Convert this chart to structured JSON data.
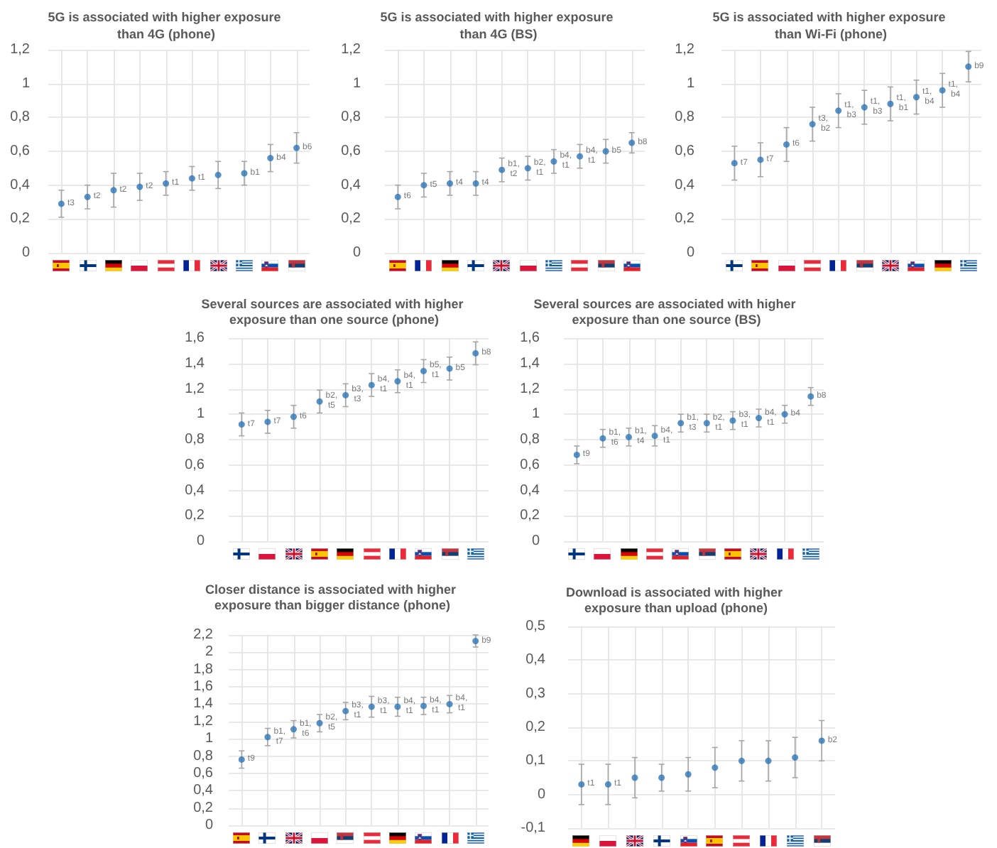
{
  "chart_data": [
    {
      "type": "scatter",
      "title": "5G is associated with higher exposure than 4G (phone)",
      "categories": [
        null,
        null,
        null,
        null,
        null,
        null,
        null,
        null,
        null,
        null
      ],
      "values": [
        0.29,
        0.33,
        0.37,
        0.39,
        0.41,
        0.44,
        0.46,
        0.47,
        0.56,
        0.62
      ],
      "errors": [
        0.08,
        0.07,
        0.1,
        0.08,
        0.07,
        0.07,
        0.08,
        0.07,
        0.08,
        0.09
      ],
      "value_labels": [
        "t3",
        "t2",
        "t2",
        "t2",
        "t1",
        "t1",
        null,
        "b1",
        "b4",
        "b6"
      ],
      "color": "#2e75b6",
      "marker": "circle",
      "grid": true,
      "ylim": [
        0,
        1.2
      ],
      "yticks": [
        0,
        {
          "value": 0.2,
          "label": "0,2"
        },
        {
          "value": 0.4,
          "label": "0,4"
        },
        {
          "value": 0.6,
          "label": "0,6"
        },
        {
          "value": 0.8,
          "label": "0,8"
        },
        1,
        {
          "value": 1.2,
          "label": "1,2"
        }
      ]
    },
    {
      "type": "scatter",
      "title": "5G is associated with higher exposure than 4G (BS)",
      "categories": [
        null,
        null,
        null,
        null,
        null,
        null,
        null,
        null,
        null,
        null
      ],
      "values": [
        0.33,
        0.4,
        0.41,
        0.41,
        0.49,
        0.5,
        0.54,
        0.57,
        0.6,
        0.65
      ],
      "errors": [
        0.07,
        0.07,
        0.07,
        0.07,
        0.07,
        0.07,
        0.07,
        0.07,
        0.07,
        0.06
      ],
      "value_labels": [
        "t6",
        "t5",
        "t4",
        "t4",
        "b1, t2",
        "b2, t1",
        "b4, t1",
        "b4, t1",
        "b5",
        "b8"
      ],
      "color": "#2e75b6",
      "marker": "circle",
      "grid": true,
      "ylim": [
        0,
        1.2
      ],
      "yticks": [
        0,
        {
          "value": 0.2,
          "label": "0,2"
        },
        {
          "value": 0.4,
          "label": "0,4"
        },
        {
          "value": 0.6,
          "label": "0,6"
        },
        {
          "value": 0.8,
          "label": "0,8"
        },
        1,
        {
          "value": 1.2,
          "label": "1,2"
        }
      ]
    },
    {
      "type": "scatter",
      "title": "5G is associated with higher exposure than Wi-Fi (phone)",
      "categories": [
        null,
        null,
        null,
        null,
        null,
        null,
        null,
        null,
        null,
        null
      ],
      "values": [
        0.53,
        0.55,
        0.64,
        0.76,
        0.84,
        0.86,
        0.88,
        0.92,
        0.96,
        1.1
      ],
      "errors": [
        0.1,
        0.1,
        0.1,
        0.1,
        0.1,
        0.1,
        0.1,
        0.1,
        0.1,
        0.09
      ],
      "value_labels": [
        "t7",
        "t7",
        "t6",
        "t3, b2",
        "t1, b3",
        "t1, b3",
        "t1, b1",
        "t1, b4",
        "t1, b4",
        "b9"
      ],
      "color": "#2e75b6",
      "marker": "circle",
      "grid": true,
      "ylim": [
        0,
        1.2
      ],
      "yticks": [
        0,
        {
          "value": 0.2,
          "label": "0,2"
        },
        {
          "value": 0.4,
          "label": "0,4"
        },
        {
          "value": 0.6,
          "label": "0,6"
        },
        {
          "value": 0.8,
          "label": "0,8"
        },
        1,
        {
          "value": 1.2,
          "label": "1,2"
        }
      ]
    },
    {
      "type": "scatter",
      "title": "Several sources are associated with higher exposure than one source (phone)",
      "categories": [
        null,
        null,
        null,
        null,
        null,
        null,
        null,
        null,
        null,
        null
      ],
      "values": [
        0.92,
        0.94,
        0.98,
        1.1,
        1.15,
        1.23,
        1.26,
        1.34,
        1.36,
        1.48
      ],
      "errors": [
        0.09,
        0.09,
        0.09,
        0.09,
        0.09,
        0.09,
        0.09,
        0.09,
        0.09,
        0.09
      ],
      "value_labels": [
        "t7",
        "t7",
        "t6",
        "b2, t5",
        "b3, t3",
        "b4, t1",
        "b4, t1",
        "b5, t1",
        "b5",
        "b8"
      ],
      "color": "#2e75b6",
      "marker": "circle",
      "grid": true,
      "ylim": [
        0,
        1.6
      ],
      "yticks": [
        0,
        {
          "value": 0.2,
          "label": "0,2"
        },
        {
          "value": 0.4,
          "label": "0,4"
        },
        {
          "value": 0.6,
          "label": "0,6"
        },
        {
          "value": 0.8,
          "label": "0,8"
        },
        1,
        {
          "value": 1.2,
          "label": "1,2"
        },
        {
          "value": 1.4,
          "label": "1,4"
        },
        {
          "value": 1.6,
          "label": "1,6"
        }
      ]
    },
    {
      "type": "scatter",
      "title": "Several sources are associated with higher exposure than one source (BS)",
      "categories": [
        null,
        null,
        null,
        null,
        null,
        null,
        null,
        null,
        null,
        null
      ],
      "values": [
        0.68,
        0.81,
        0.82,
        0.83,
        0.93,
        0.93,
        0.95,
        0.97,
        1.0,
        1.14
      ],
      "errors": [
        0.07,
        0.07,
        0.07,
        0.08,
        0.07,
        0.07,
        0.07,
        0.07,
        0.07,
        0.07
      ],
      "value_labels": [
        "t9",
        "b1, t6",
        "b1, t4",
        "b4, t1",
        "b1, t3",
        "b2, t1",
        "b3, t1",
        "b4, t1",
        "b4",
        "b8"
      ],
      "color": "#2e75b6",
      "marker": "circle",
      "grid": true,
      "ylim": [
        0,
        1.6
      ],
      "yticks": [
        0,
        {
          "value": 0.2,
          "label": "0,2"
        },
        {
          "value": 0.4,
          "label": "0,4"
        },
        {
          "value": 0.6,
          "label": "0,6"
        },
        {
          "value": 0.8,
          "label": "0,8"
        },
        1,
        {
          "value": 1.2,
          "label": "1,2"
        },
        {
          "value": 1.4,
          "label": "1,4"
        },
        {
          "value": 1.6,
          "label": "1,6"
        }
      ]
    },
    {
      "type": "scatter",
      "title": "Closer distance is associated with higher exposure than bigger distance (phone)",
      "categories": [
        null,
        null,
        null,
        null,
        null,
        null,
        null,
        null,
        null,
        null
      ],
      "values": [
        0.76,
        1.02,
        1.11,
        1.18,
        1.32,
        1.37,
        1.37,
        1.38,
        1.4,
        2.13
      ],
      "errors": [
        0.1,
        0.1,
        0.1,
        0.1,
        0.1,
        0.12,
        0.11,
        0.1,
        0.1,
        0.07
      ],
      "value_labels": [
        "t9",
        "b1, t7",
        "b1, t6",
        "b2, t5",
        "b3, t1",
        "b3, t1",
        "b4, t1",
        "b4, t1",
        "b4, t1",
        "b9"
      ],
      "color": "#2e75b6",
      "marker": "circle",
      "grid": true,
      "ylim": [
        0,
        2.2
      ],
      "yticks": [
        0,
        {
          "value": 0.2,
          "label": "0,2"
        },
        {
          "value": 0.4,
          "label": "0,4"
        },
        {
          "value": 0.6,
          "label": "0,6"
        },
        {
          "value": 0.8,
          "label": "0,8"
        },
        1,
        {
          "value": 1.2,
          "label": "1,2"
        },
        {
          "value": 1.4,
          "label": "1,4"
        },
        {
          "value": 1.6,
          "label": "1,6"
        },
        {
          "value": 1.8,
          "label": "1,8"
        },
        2,
        {
          "value": 2.2,
          "label": "2,2"
        }
      ]
    },
    {
      "type": "scatter",
      "title": "Download is associated with higher exposure than upload (phone)",
      "categories": [
        null,
        null,
        null,
        null,
        null,
        null,
        null,
        null,
        null,
        null
      ],
      "values": [
        0.03,
        0.03,
        0.05,
        0.05,
        0.06,
        0.08,
        0.1,
        0.1,
        0.11,
        0.16
      ],
      "errors": [
        0.06,
        0.06,
        0.06,
        0.04,
        0.05,
        0.06,
        0.06,
        0.06,
        0.06,
        0.06
      ],
      "value_labels": [
        "t1",
        "t1",
        null,
        null,
        null,
        null,
        null,
        null,
        null,
        "b2"
      ],
      "color": "#2e75b6",
      "marker": "circle",
      "grid": true,
      "ylim": [
        -0.1,
        0.5
      ],
      "yticks": [
        {
          "value": -0.1,
          "label": "-0,1"
        },
        0,
        {
          "value": 0.1,
          "label": "0,1"
        },
        {
          "value": 0.2,
          "label": "0,2"
        },
        {
          "value": 0.3,
          "label": "0,3"
        },
        {
          "value": 0.4,
          "label": "0,4"
        },
        {
          "value": 0.5,
          "label": "0,5"
        }
      ]
    }
  ]
}
